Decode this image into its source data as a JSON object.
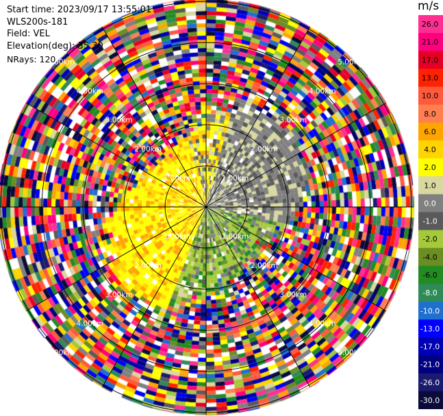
{
  "info": {
    "start_time": "Start time: 2023/09/17 13:55:01",
    "instrument": "WLS200s-181",
    "field": "Field: VEL",
    "elevation": "Elevation(deg): 35.30",
    "nrays": "NRays: 120"
  },
  "colorbar": {
    "unit": "m/s",
    "ticks": [
      "26.0",
      "21.0",
      "17.0",
      "13.0",
      "10.0",
      "8.0",
      "6.0",
      "4.0",
      "2.0",
      "1.0",
      "0.0",
      "-1.0",
      "-2.0",
      "-4.0",
      "-6.0",
      "-8.0",
      "-10.0",
      "-13.0",
      "-17.0",
      "-21.0",
      "-26.0",
      "-30.0"
    ],
    "colors": [
      "#ff2f92",
      "#ff007f",
      "#e60026",
      "#ff2200",
      "#ff5a3c",
      "#ff7f50",
      "#ffa500",
      "#ffd400",
      "#ffff00",
      "#d8d8a0",
      "#808080",
      "#5a5a5a",
      "#a4c93a",
      "#6b8e23",
      "#228b22",
      "#2e8b57",
      "#1e6fcf",
      "#0000ff",
      "#0000b4",
      "#000080",
      "#1a1a6e",
      "#0b0b3a"
    ]
  },
  "range_labels": [
    "1.00km",
    "2.00km",
    "3.00km",
    "4.00km",
    "5.00km"
  ],
  "chart_data": {
    "type": "heatmap",
    "description_field": "VEL",
    "rays": 120,
    "range_rings_km": [
      1.0,
      2.0,
      3.0,
      4.0,
      5.0
    ],
    "value_range": [
      -30.0,
      26.0
    ],
    "units": "m/s"
  }
}
